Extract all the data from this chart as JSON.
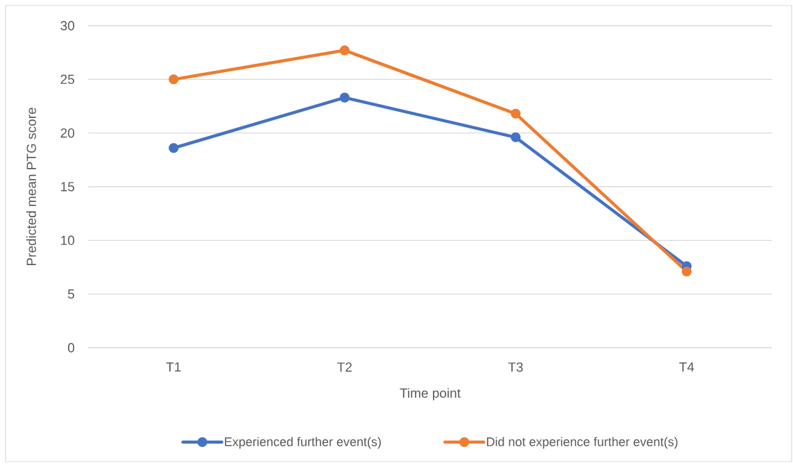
{
  "chart_data": {
    "type": "line",
    "xlabel": "Time point",
    "ylabel": "Predicted mean PTG score",
    "categories": [
      "T1",
      "T2",
      "T3",
      "T4"
    ],
    "series": [
      {
        "name": "Experienced further event(s)",
        "color": "#4472c4",
        "values": [
          18.6,
          23.3,
          19.6,
          7.6
        ]
      },
      {
        "name": "Did not experience further event(s)",
        "color": "#ed7d31",
        "values": [
          25.0,
          27.7,
          21.8,
          7.1
        ]
      }
    ],
    "ylim": [
      0,
      30
    ],
    "yticks": [
      0,
      5,
      10,
      15,
      20,
      25,
      30
    ],
    "grid": "y",
    "legend": "bottom",
    "marker": "circle",
    "line_style": "solid"
  }
}
